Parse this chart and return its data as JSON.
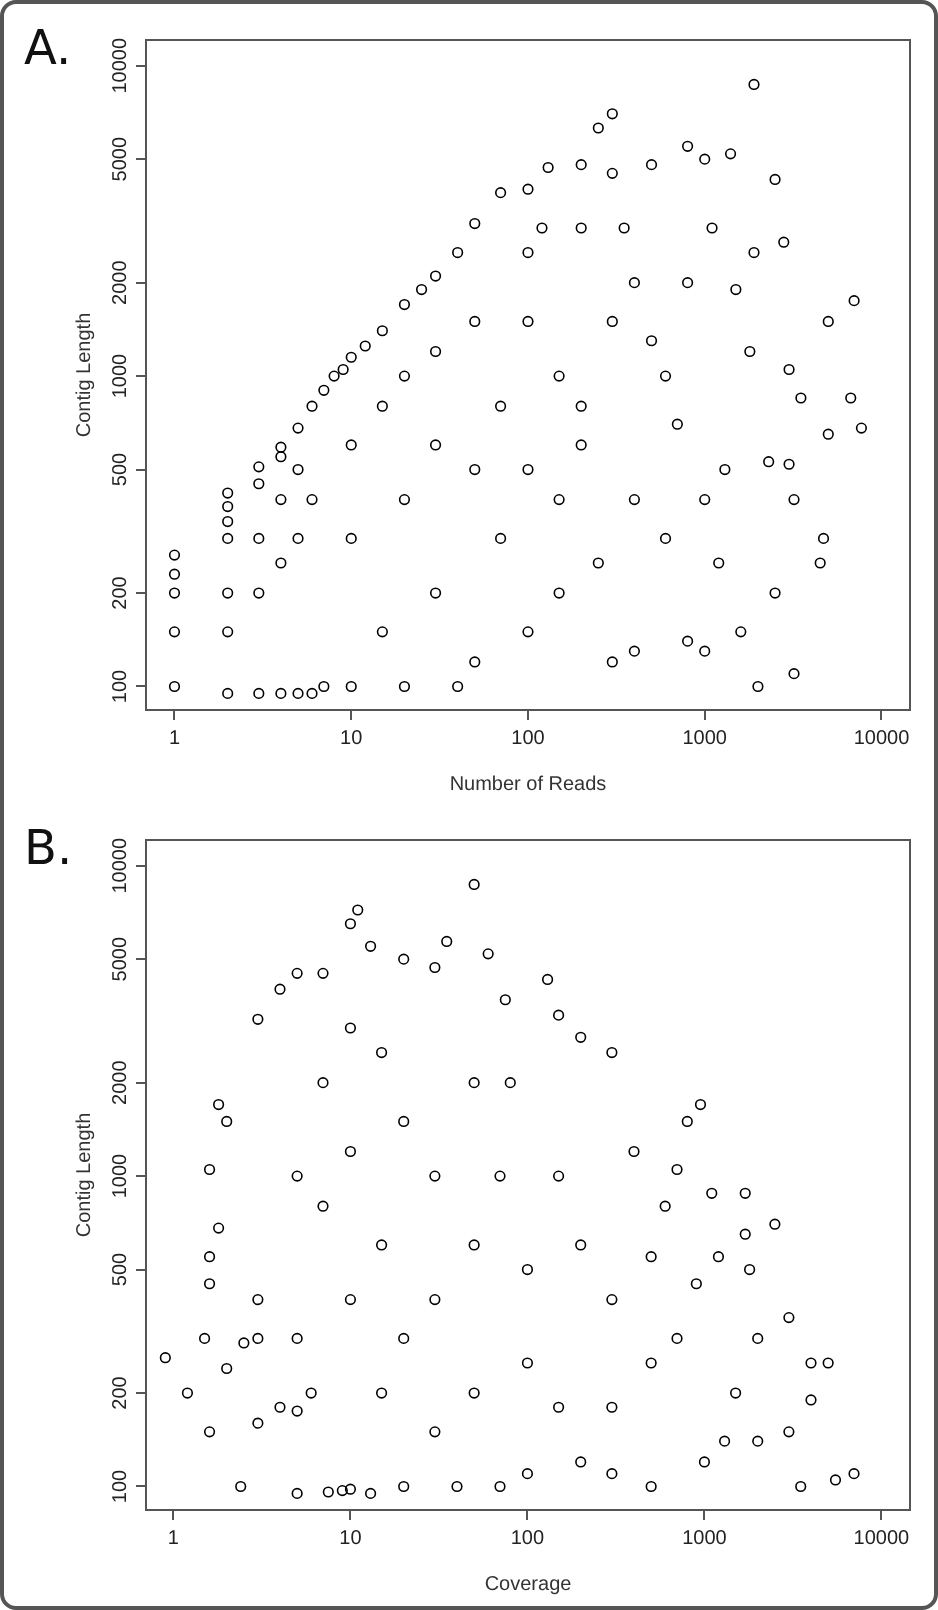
{
  "chart_data": [
    {
      "type": "scatter",
      "title": "A.",
      "xlabel": "Number of Reads",
      "ylabel": "Contig Length",
      "log": "xy",
      "marker": "circle",
      "xlim": [
        0.69,
        14500
      ],
      "ylim": [
        84,
        12100
      ],
      "xticks": [
        1,
        10,
        100,
        1000,
        10000
      ],
      "yticks": [
        100,
        200,
        500,
        1000,
        2000,
        5000,
        10000
      ],
      "series": [
        {
          "color": "#000000",
          "x": [
            1,
            1,
            1,
            1,
            1,
            2,
            2,
            2,
            2,
            2,
            2,
            2,
            3,
            3,
            3,
            3,
            3,
            4,
            4,
            4,
            4,
            4,
            5,
            5,
            5,
            5,
            6,
            6,
            6,
            7,
            8,
            9,
            10,
            12,
            15,
            20,
            25,
            30,
            40,
            50,
            70,
            100,
            130,
            200,
            250,
            300,
            1900,
            7,
            10,
            10,
            10,
            15,
            15,
            20,
            20,
            20,
            30,
            30,
            30,
            50,
            50,
            50,
            70,
            70,
            100,
            100,
            100,
            100,
            150,
            150,
            200,
            200,
            300,
            300,
            400,
            400,
            500,
            600,
            800,
            1000,
            1000,
            1000,
            1100,
            1400,
            1500,
            1900,
            2000,
            2500,
            2800,
            3000,
            3500,
            5000,
            5000,
            6700,
            7700,
            7000,
            4500,
            3200,
            2500,
            1600,
            1200,
            800,
            600,
            300,
            200,
            150,
            40,
            700,
            400,
            250,
            1300,
            2300,
            3000,
            3200,
            4700,
            1800,
            800,
            500,
            350,
            120
          ],
          "values": [
            100,
            150,
            200,
            230,
            265,
            95,
            150,
            200,
            300,
            340,
            380,
            420,
            95,
            200,
            300,
            450,
            510,
            95,
            250,
            400,
            550,
            590,
            95,
            300,
            500,
            680,
            95,
            400,
            800,
            900,
            1000,
            1050,
            1150,
            1250,
            1400,
            1700,
            1900,
            2100,
            2500,
            3100,
            3900,
            4000,
            4700,
            4800,
            6300,
            7000,
            8700,
            100,
            100,
            300,
            600,
            150,
            800,
            100,
            400,
            1000,
            200,
            600,
            1200,
            120,
            500,
            1500,
            300,
            800,
            150,
            500,
            1500,
            2500,
            200,
            1000,
            3000,
            600,
            1500,
            4500,
            130,
            2000,
            4800,
            1000,
            5500,
            5000,
            400,
            130,
            3000,
            5200,
            1900,
            2500,
            100,
            4300,
            2700,
            1050,
            850,
            1500,
            650,
            850,
            680,
            1750,
            250,
            110,
            200,
            150,
            250,
            140,
            300,
            120,
            800,
            400,
            100,
            700,
            400,
            250,
            500,
            530,
            520,
            400,
            300,
            1200,
            2000,
            1300,
            3000,
            3000
          ]
        }
      ]
    },
    {
      "type": "scatter",
      "title": "B.",
      "xlabel": "Coverage",
      "ylabel": "Contig Length",
      "log": "xy",
      "marker": "circle",
      "xlim": [
        0.7,
        14500
      ],
      "ylim": [
        84,
        12100
      ],
      "xticks": [
        1,
        10,
        100,
        1000,
        10000
      ],
      "yticks": [
        100,
        200,
        500,
        1000,
        2000,
        5000,
        10000
      ],
      "series": [
        {
          "color": "#000000",
          "x": [
            0.9,
            1.2,
            1.6,
            2.4,
            1.5,
            2,
            3,
            5,
            1.6,
            2.5,
            4,
            7.5,
            1.6,
            3,
            5,
            9,
            1.8,
            3,
            6,
            10,
            1.6,
            1.8,
            2,
            3,
            4,
            5,
            7,
            10,
            11,
            13,
            20,
            30,
            35,
            50,
            60,
            130,
            150,
            75,
            300,
            800,
            950,
            700,
            1100,
            1700,
            2500,
            1700,
            1800,
            3000,
            4000,
            5000,
            7000,
            5500,
            3500,
            2000,
            1000,
            500,
            300,
            200,
            100,
            70,
            40,
            20,
            13,
            5,
            5,
            7,
            7,
            10,
            10,
            10,
            15,
            15,
            15,
            20,
            20,
            30,
            30,
            30,
            50,
            50,
            50,
            70,
            80,
            100,
            100,
            150,
            150,
            200,
            200,
            300,
            300,
            500,
            500,
            700,
            900,
            1300,
            1500,
            2000,
            3000,
            4000,
            1200,
            600,
            400
          ],
          "values": [
            260,
            200,
            150,
            100,
            300,
            240,
            160,
            95,
            450,
            290,
            180,
            96,
            550,
            300,
            175,
            97,
            680,
            400,
            200,
            98,
            1050,
            1700,
            1500,
            3200,
            4000,
            4500,
            4500,
            6500,
            7200,
            5500,
            5000,
            4700,
            5700,
            8700,
            5200,
            4300,
            3300,
            3700,
            2500,
            1500,
            1700,
            1050,
            880,
            880,
            700,
            650,
            500,
            350,
            250,
            250,
            110,
            105,
            100,
            140,
            120,
            100,
            110,
            120,
            110,
            100,
            100,
            100,
            95,
            1000,
            300,
            2000,
            800,
            3000,
            1200,
            400,
            2500,
            600,
            200,
            1500,
            300,
            1000,
            400,
            150,
            2000,
            600,
            200,
            1000,
            2000,
            500,
            250,
            1000,
            180,
            600,
            2800,
            400,
            180,
            550,
            250,
            300,
            450,
            140,
            200,
            300,
            150,
            190,
            550,
            800,
            1200
          ]
        }
      ]
    }
  ]
}
